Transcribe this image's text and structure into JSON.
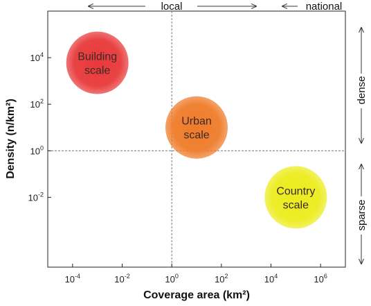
{
  "chart_data": {
    "type": "scatter",
    "x_scale": "log",
    "y_scale": "log",
    "xlabel": "Coverage area (km²)",
    "ylabel": "Density (n/km²)",
    "xlim": [
      1e-05,
      10000000.0
    ],
    "ylim": [
      1e-05,
      1000000.0
    ],
    "x_ticks": [
      {
        "value": 0.0001,
        "base": "10",
        "exp": "-4"
      },
      {
        "value": 0.01,
        "base": "10",
        "exp": "-2"
      },
      {
        "value": 1,
        "base": "10",
        "exp": "0"
      },
      {
        "value": 100.0,
        "base": "10",
        "exp": "2"
      },
      {
        "value": 10000.0,
        "base": "10",
        "exp": "4"
      },
      {
        "value": 1000000.0,
        "base": "10",
        "exp": "6"
      }
    ],
    "y_ticks": [
      {
        "value": 0.01,
        "base": "10",
        "exp": "-2"
      },
      {
        "value": 1,
        "base": "10",
        "exp": "0"
      },
      {
        "value": 100.0,
        "base": "10",
        "exp": "2"
      },
      {
        "value": 10000.0,
        "base": "10",
        "exp": "4"
      }
    ],
    "reference_lines": {
      "x": 1,
      "y": 1
    },
    "grid": false,
    "points": [
      {
        "lines": [
          "Building",
          "scale"
        ],
        "x": 0.001,
        "y": 6000,
        "color": "#e8393a"
      },
      {
        "lines": [
          "Urban",
          "scale"
        ],
        "x": 10,
        "y": 10,
        "color": "#ef7c2a"
      },
      {
        "lines": [
          "Country",
          "scale"
        ],
        "x": 100000,
        "y": 0.01,
        "color": "#ecec1e"
      }
    ],
    "annotations": {
      "top_left": "local",
      "top_right": "national",
      "right_top": "dense",
      "right_bottom": "sparse"
    }
  }
}
